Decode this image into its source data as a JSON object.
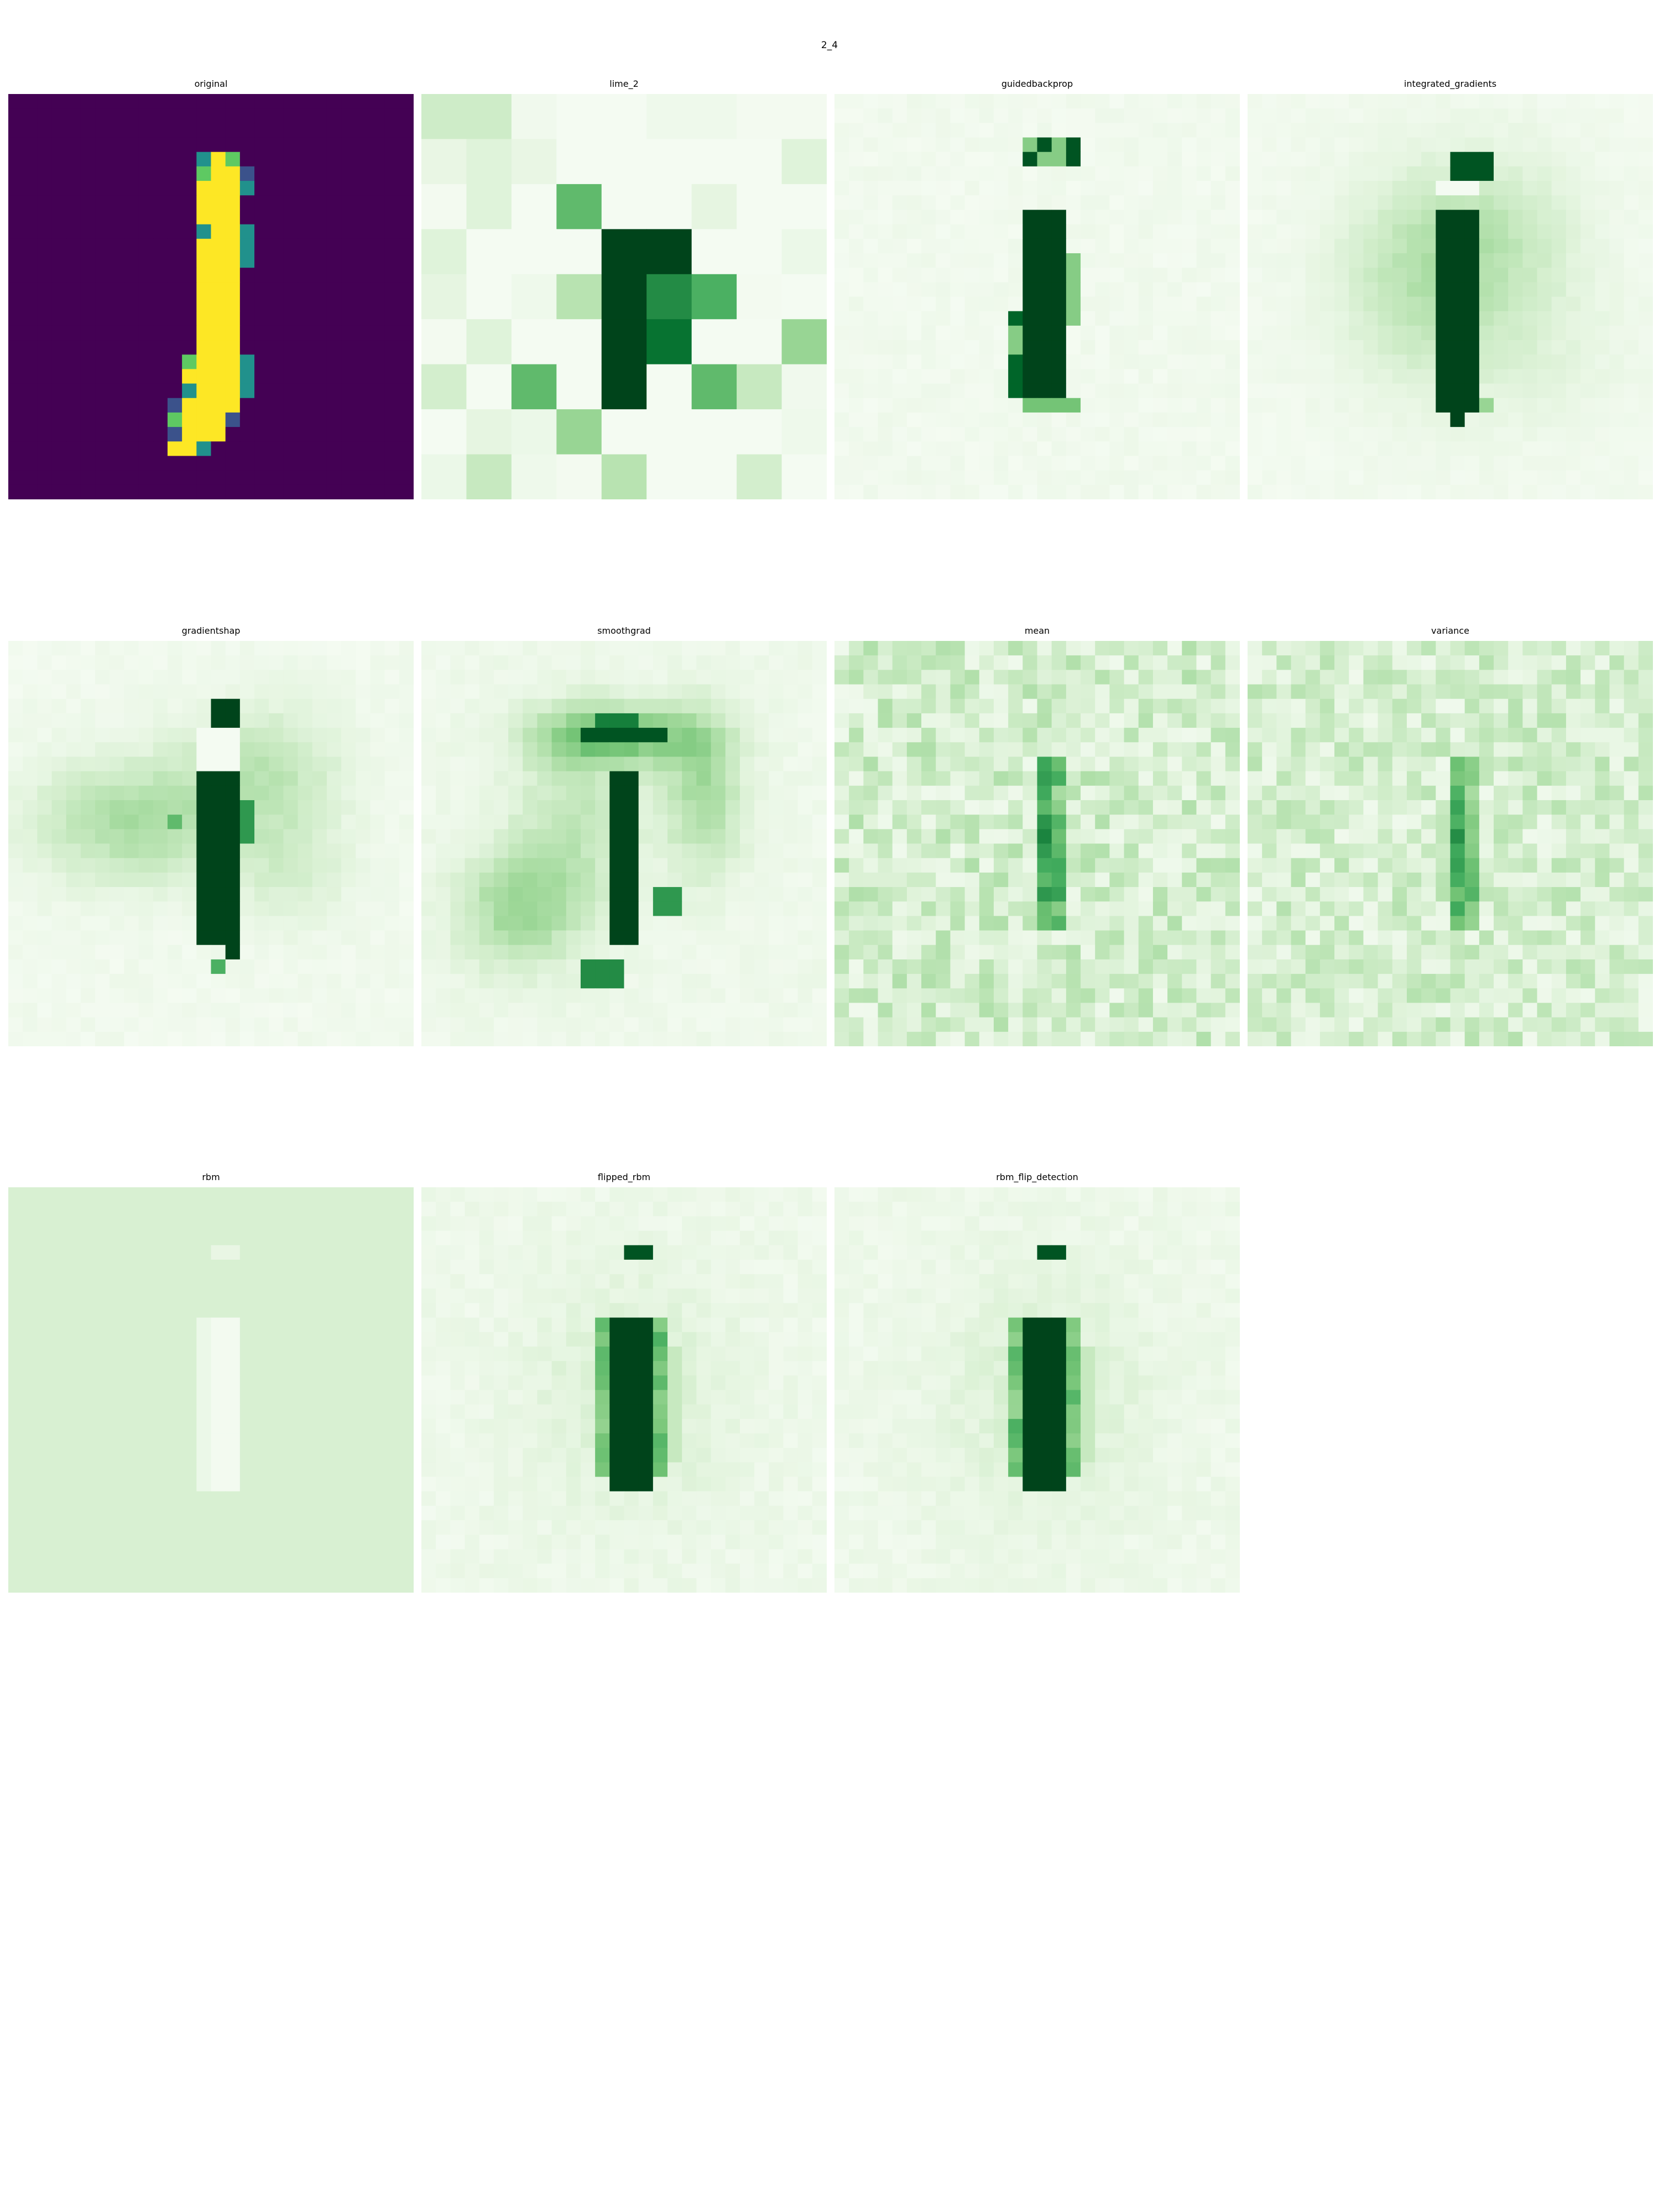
{
  "suptitle": "2_4",
  "colors": {
    "original_map": "viridis",
    "attribution_map": "Greens",
    "background": "#ffffff"
  },
  "chart_data": [
    {
      "type": "heatmap",
      "title": "original",
      "colormap": "viridis",
      "grid": false,
      "axes": "off"
    },
    {
      "type": "heatmap",
      "title": "lime_2",
      "colormap": "Greens",
      "grid": false,
      "axes": "off"
    },
    {
      "type": "heatmap",
      "title": "guidedbackprop",
      "colormap": "Greens",
      "grid": false,
      "axes": "off"
    },
    {
      "type": "heatmap",
      "title": "integrated_gradients",
      "colormap": "Greens",
      "grid": false,
      "axes": "off"
    },
    {
      "type": "heatmap",
      "title": "gradientshap",
      "colormap": "Greens",
      "grid": false,
      "axes": "off"
    },
    {
      "type": "heatmap",
      "title": "smoothgrad",
      "colormap": "Greens",
      "grid": false,
      "axes": "off"
    },
    {
      "type": "heatmap",
      "title": "mean",
      "colormap": "Greens",
      "grid": false,
      "axes": "off"
    },
    {
      "type": "heatmap",
      "title": "variance",
      "colormap": "Greens",
      "grid": false,
      "axes": "off"
    },
    {
      "type": "heatmap",
      "title": "rbm",
      "colormap": "Greens",
      "grid": false,
      "axes": "off"
    },
    {
      "type": "heatmap",
      "title": "flipped_rbm",
      "colormap": "Greens",
      "grid": false,
      "axes": "off"
    },
    {
      "type": "heatmap",
      "title": "rbm_flip_detection",
      "colormap": "Greens",
      "grid": false,
      "axes": "off"
    }
  ]
}
